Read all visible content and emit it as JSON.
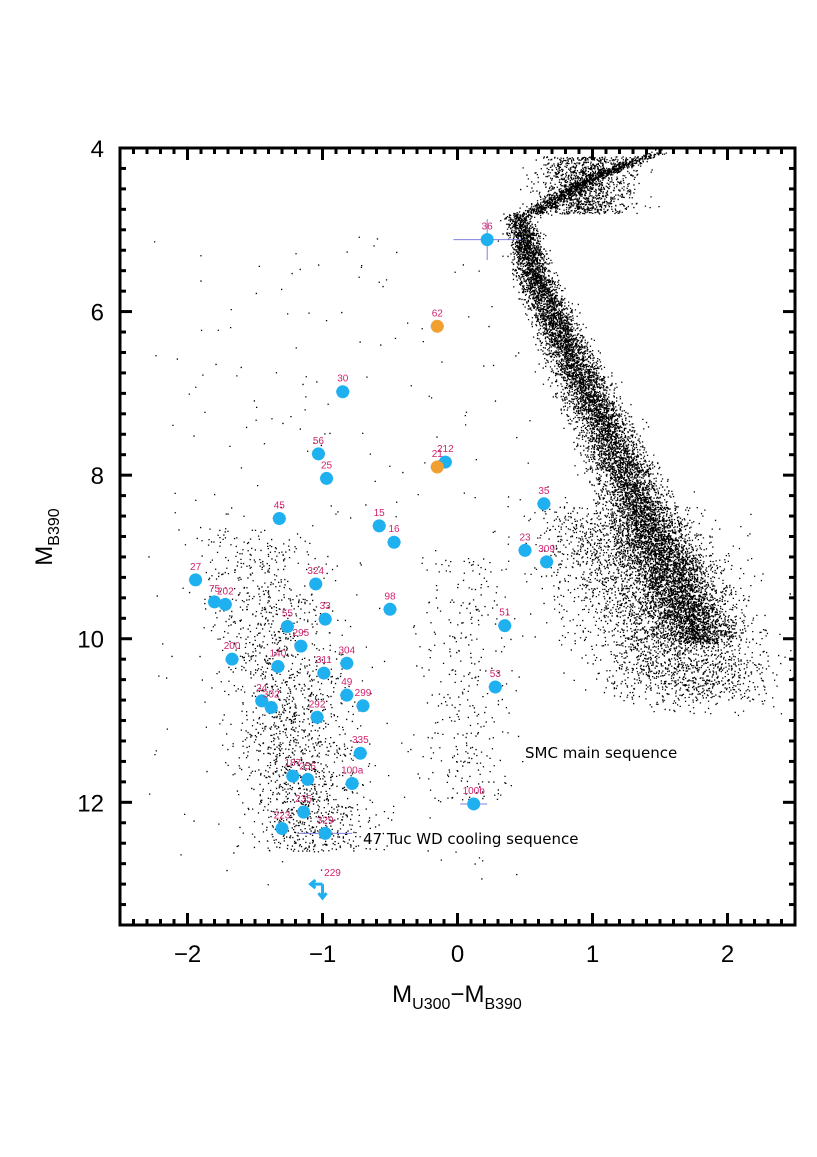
{
  "chart_data": {
    "type": "scatter",
    "xlabel": {
      "main": "M",
      "sub1": "U300",
      "minus": "−M",
      "sub2": "B390"
    },
    "ylabel": {
      "main": "M",
      "sub": "B390"
    },
    "xlim": [
      -2.5,
      2.5
    ],
    "ylim": [
      13.5,
      4
    ],
    "y_inverted": true,
    "x_major_ticks": [
      -2,
      -1,
      0,
      1,
      2
    ],
    "x_tick_labels": [
      "−2",
      "−1",
      "0",
      "1",
      "2"
    ],
    "y_major_ticks": [
      4,
      6,
      8,
      10,
      12
    ],
    "y_tick_labels": [
      "4",
      "6",
      "8",
      "10",
      "12"
    ],
    "minor_tick_step": 0.1,
    "annotations": [
      {
        "text": "SMC main sequence",
        "x": 0.5,
        "y": 11.4
      },
      {
        "text": "47 Tuc WD cooling sequence",
        "x": -0.7,
        "y": 12.45
      }
    ],
    "colors": {
      "cyan": "#1fb0f0",
      "orange": "#f0a030",
      "label": "#d2226e",
      "errorbar": "#8080e0",
      "background_stars": "#000000"
    },
    "background_populations": [
      {
        "name": "SMC main sequence",
        "description": "dense black point cloud along the upper main sequence"
      },
      {
        "name": "47 Tuc WD cooling sequence",
        "description": "diffuse black point cloud of white dwarfs"
      }
    ],
    "series": [
      {
        "color": "#1fb0f0",
        "points": [
          {
            "label": "36",
            "x": 0.22,
            "y": 5.12,
            "xerr": 0.25,
            "yerr": 0.25
          },
          {
            "label": "30",
            "x": -0.85,
            "y": 6.98,
            "xerr": 0.05,
            "yerr": 0.05
          },
          {
            "label": "56",
            "x": -1.03,
            "y": 7.74,
            "xerr": 0.05,
            "yerr": 0.05
          },
          {
            "label": "212",
            "x": -0.09,
            "y": 7.84,
            "xerr": 0.05,
            "yerr": 0.05
          },
          {
            "label": "25",
            "x": -0.97,
            "y": 8.04,
            "xerr": 0.05,
            "yerr": 0.05
          },
          {
            "label": "35",
            "x": 0.64,
            "y": 8.35,
            "xerr": 0.05,
            "yerr": 0.05
          },
          {
            "label": "45",
            "x": -1.32,
            "y": 8.53,
            "xerr": 0.05,
            "yerr": 0.05
          },
          {
            "label": "15",
            "x": -0.58,
            "y": 8.62,
            "xerr": 0.05,
            "yerr": 0.05
          },
          {
            "label": "16",
            "x": -0.47,
            "y": 8.82,
            "xerr": 0.05,
            "yerr": 0.05
          },
          {
            "label": "23",
            "x": 0.5,
            "y": 8.92,
            "xerr": 0.05,
            "yerr": 0.05
          },
          {
            "label": "309",
            "x": 0.66,
            "y": 9.06,
            "xerr": 0.05,
            "yerr": 0.05
          },
          {
            "label": "27",
            "x": -1.94,
            "y": 9.28,
            "xerr": 0.05,
            "yerr": 0.05
          },
          {
            "label": "324",
            "x": -1.05,
            "y": 9.33,
            "xerr": 0.05,
            "yerr": 0.05
          },
          {
            "label": "75",
            "x": -1.8,
            "y": 9.55,
            "xerr": 0.05,
            "yerr": 0.05
          },
          {
            "label": "202",
            "x": -1.72,
            "y": 9.58,
            "xerr": 0.05,
            "yerr": 0.05
          },
          {
            "label": "98",
            "x": -0.5,
            "y": 9.64,
            "xerr": 0.05,
            "yerr": 0.05
          },
          {
            "label": "33",
            "x": -0.98,
            "y": 9.76,
            "xerr": 0.05,
            "yerr": 0.05
          },
          {
            "label": "55",
            "x": -1.26,
            "y": 9.85,
            "xerr": 0.05,
            "yerr": 0.05
          },
          {
            "label": "51",
            "x": 0.35,
            "y": 9.84,
            "xerr": 0.05,
            "yerr": 0.05
          },
          {
            "label": "295",
            "x": -1.16,
            "y": 10.09,
            "xerr": 0.05,
            "yerr": 0.05
          },
          {
            "label": "200",
            "x": -1.67,
            "y": 10.25,
            "xerr": 0.05,
            "yerr": 0.05
          },
          {
            "label": "304",
            "x": -0.82,
            "y": 10.3,
            "xerr": 0.05,
            "yerr": 0.05
          },
          {
            "label": "140",
            "x": -1.33,
            "y": 10.34,
            "xerr": 0.05,
            "yerr": 0.05
          },
          {
            "label": "311",
            "x": -0.99,
            "y": 10.42,
            "xerr": 0.05,
            "yerr": 0.05
          },
          {
            "label": "53",
            "x": 0.28,
            "y": 10.59,
            "xerr": 0.05,
            "yerr": 0.05
          },
          {
            "label": "49",
            "x": -0.82,
            "y": 10.69,
            "xerr": 0.05,
            "yerr": 0.05
          },
          {
            "label": "24",
            "x": -1.45,
            "y": 10.76,
            "xerr": 0.05,
            "yerr": 0.05
          },
          {
            "label": "302",
            "x": -1.38,
            "y": 10.84,
            "xerr": 0.05,
            "yerr": 0.05
          },
          {
            "label": "299",
            "x": -0.7,
            "y": 10.82,
            "xerr": 0.05,
            "yerr": 0.05
          },
          {
            "label": "292",
            "x": -1.04,
            "y": 10.96,
            "xerr": 0.05,
            "yerr": 0.05
          },
          {
            "label": "335",
            "x": -0.72,
            "y": 11.4,
            "xerr": 0.05,
            "yerr": 0.05
          },
          {
            "label": "187",
            "x": -1.22,
            "y": 11.68,
            "xerr": 0.05,
            "yerr": 0.05
          },
          {
            "label": "256",
            "x": -1.11,
            "y": 11.72,
            "xerr": 0.05,
            "yerr": 0.05
          },
          {
            "label": "100a",
            "x": -0.78,
            "y": 11.77,
            "xerr": 0.05,
            "yerr": 0.05
          },
          {
            "label": "100b",
            "x": 0.12,
            "y": 12.02,
            "xerr": 0.1,
            "yerr": 0.05
          },
          {
            "label": "235",
            "x": -1.14,
            "y": 12.12,
            "xerr": 0.05,
            "yerr": 0.05
          },
          {
            "label": "223",
            "x": -1.3,
            "y": 12.32,
            "xerr": 0.05,
            "yerr": 0.05
          },
          {
            "label": "329",
            "x": -0.98,
            "y": 12.38,
            "xerr": 0.2,
            "yerr": 0.05
          }
        ]
      },
      {
        "color": "#f0a030",
        "points": [
          {
            "label": "62",
            "x": -0.15,
            "y": 6.18,
            "xerr": 0.05,
            "yerr": 0.05
          },
          {
            "label": "21",
            "x": -0.15,
            "y": 7.9,
            "xerr": 0.05,
            "yerr": 0.05
          }
        ]
      }
    ],
    "limits": [
      {
        "label": "229",
        "x": -1.0,
        "y": 13.0,
        "type": "arrow-left-down"
      }
    ]
  }
}
